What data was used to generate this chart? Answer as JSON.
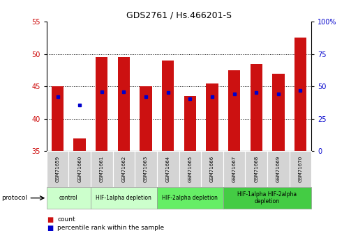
{
  "title": "GDS2761 / Hs.466201-S",
  "samples": [
    "GSM71659",
    "GSM71660",
    "GSM71661",
    "GSM71662",
    "GSM71663",
    "GSM71664",
    "GSM71665",
    "GSM71666",
    "GSM71667",
    "GSM71668",
    "GSM71669",
    "GSM71670"
  ],
  "bar_tops": [
    45.0,
    37.0,
    49.5,
    49.5,
    45.0,
    49.0,
    43.5,
    45.5,
    47.5,
    48.5,
    47.0,
    52.5
  ],
  "bar_bottom": 35.0,
  "percentile_ranks": [
    42.0,
    35.5,
    46.0,
    45.8,
    41.8,
    45.5,
    40.2,
    42.3,
    44.2,
    45.2,
    44.0,
    47.0
  ],
  "ylim_left": [
    35,
    55
  ],
  "yticks_left": [
    35,
    40,
    45,
    50,
    55
  ],
  "ylim_right": [
    0,
    100
  ],
  "yticks_right": [
    0,
    25,
    50,
    75,
    100
  ],
  "bar_color": "#cc1111",
  "dot_color": "#0000cc",
  "bg_color": "#ffffff",
  "ylabel_left_color": "#cc0000",
  "ylabel_right_color": "#0000cc",
  "title_color": "#000000",
  "group_extents": [
    {
      "start": 0,
      "end": 1,
      "label": "control",
      "color": "#ccffcc"
    },
    {
      "start": 2,
      "end": 4,
      "label": "HIF-1alpha depletion",
      "color": "#ccffcc"
    },
    {
      "start": 5,
      "end": 7,
      "label": "HIF-2alpha depletion",
      "color": "#66ee66"
    },
    {
      "start": 8,
      "end": 11,
      "label": "HIF-1alpha HIF-2alpha\ndepletion",
      "color": "#44cc44"
    }
  ]
}
